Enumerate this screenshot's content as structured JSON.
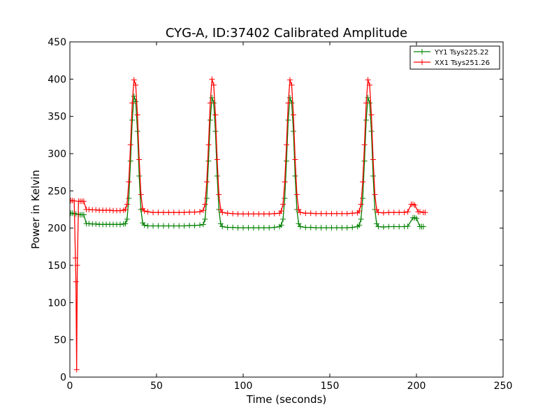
{
  "chart_data": {
    "type": "line",
    "title": "CYG-A, ID:37402 Calibrated Amplitude",
    "xlabel": "Time (seconds)",
    "ylabel": "Power in Kelvin",
    "xlim": [
      0,
      250
    ],
    "ylim": [
      0,
      450
    ],
    "xticks": [
      0,
      50,
      100,
      150,
      200,
      250
    ],
    "yticks": [
      0,
      50,
      100,
      150,
      200,
      250,
      300,
      350,
      400,
      450
    ],
    "grid": false,
    "legend": "top-right",
    "marker": "+",
    "series": [
      {
        "name": "YY1 Tsys225.22",
        "color": "#008000",
        "points": [
          [
            0.5,
            220
          ],
          [
            1.5,
            220
          ],
          [
            2.5,
            219.5
          ],
          [
            3.5,
            219
          ],
          [
            5,
            218.5
          ],
          [
            6,
            218
          ],
          [
            7,
            218
          ],
          [
            8,
            218
          ],
          [
            9.5,
            206
          ],
          [
            11,
            206
          ],
          [
            13,
            205.5
          ],
          [
            15,
            205.5
          ],
          [
            17,
            205
          ],
          [
            19,
            205
          ],
          [
            21,
            205
          ],
          [
            23,
            205
          ],
          [
            25,
            205
          ],
          [
            27,
            205
          ],
          [
            29,
            205
          ],
          [
            31,
            205.5
          ],
          [
            32,
            206
          ],
          [
            33,
            212
          ],
          [
            34,
            240
          ],
          [
            35,
            290
          ],
          [
            36,
            345
          ],
          [
            37,
            377
          ],
          [
            38,
            370
          ],
          [
            39,
            330
          ],
          [
            40,
            270
          ],
          [
            41,
            225
          ],
          [
            42,
            207
          ],
          [
            43,
            204
          ],
          [
            45,
            203
          ],
          [
            48,
            203
          ],
          [
            51,
            203
          ],
          [
            54,
            203
          ],
          [
            57,
            203
          ],
          [
            60,
            203
          ],
          [
            63,
            203
          ],
          [
            66,
            203
          ],
          [
            69,
            203.5
          ],
          [
            72,
            203.5
          ],
          [
            75,
            204
          ],
          [
            77,
            205
          ],
          [
            78,
            212
          ],
          [
            79,
            240
          ],
          [
            80,
            290
          ],
          [
            81,
            345
          ],
          [
            82,
            375
          ],
          [
            83,
            368
          ],
          [
            84,
            330
          ],
          [
            85,
            270
          ],
          [
            86,
            225
          ],
          [
            87,
            206
          ],
          [
            88,
            202
          ],
          [
            91,
            201
          ],
          [
            94,
            201
          ],
          [
            97,
            200.5
          ],
          [
            100,
            200.5
          ],
          [
            103,
            200.5
          ],
          [
            106,
            200.5
          ],
          [
            109,
            200.5
          ],
          [
            112,
            200.5
          ],
          [
            115,
            200.5
          ],
          [
            118,
            201
          ],
          [
            121,
            202
          ],
          [
            122,
            204
          ],
          [
            123,
            212
          ],
          [
            124,
            240
          ],
          [
            125,
            290
          ],
          [
            126,
            345
          ],
          [
            127,
            375
          ],
          [
            128,
            368
          ],
          [
            129,
            330
          ],
          [
            130,
            270
          ],
          [
            131,
            225
          ],
          [
            132,
            206
          ],
          [
            133,
            202
          ],
          [
            136,
            201
          ],
          [
            139,
            201
          ],
          [
            142,
            200.5
          ],
          [
            145,
            200.5
          ],
          [
            148,
            200.5
          ],
          [
            151,
            200.5
          ],
          [
            154,
            200.5
          ],
          [
            157,
            200.5
          ],
          [
            160,
            200.5
          ],
          [
            163,
            201
          ],
          [
            166,
            202
          ],
          [
            167,
            204
          ],
          [
            168,
            212
          ],
          [
            169,
            240
          ],
          [
            170,
            290
          ],
          [
            171,
            345
          ],
          [
            172,
            375
          ],
          [
            173,
            368
          ],
          [
            174,
            330
          ],
          [
            175,
            270
          ],
          [
            176,
            225
          ],
          [
            177,
            206
          ],
          [
            178,
            202
          ],
          [
            181,
            201.5
          ],
          [
            184,
            202
          ],
          [
            187,
            202
          ],
          [
            190,
            202
          ],
          [
            193,
            202
          ],
          [
            195,
            202.5
          ],
          [
            198,
            214
          ],
          [
            199,
            214
          ],
          [
            200,
            213
          ],
          [
            202,
            202
          ],
          [
            203,
            202
          ],
          [
            204,
            202
          ]
        ]
      },
      {
        "name": "XX1 Tsys251.26",
        "color": "#ff0000",
        "points": [
          [
            0.5,
            237
          ],
          [
            1.5,
            237
          ],
          [
            2.5,
            236.5
          ],
          [
            3.2,
            160
          ],
          [
            3.5,
            128
          ],
          [
            3.9,
            10
          ],
          [
            4.3,
            150
          ],
          [
            5,
            236
          ],
          [
            6,
            236
          ],
          [
            7,
            236
          ],
          [
            8,
            236
          ],
          [
            9.5,
            225
          ],
          [
            11,
            225
          ],
          [
            13,
            224.5
          ],
          [
            15,
            224.5
          ],
          [
            17,
            224
          ],
          [
            19,
            224
          ],
          [
            21,
            224
          ],
          [
            23,
            224
          ],
          [
            25,
            223.5
          ],
          [
            27,
            223.5
          ],
          [
            29,
            223.5
          ],
          [
            31,
            224
          ],
          [
            32,
            225
          ],
          [
            33,
            232
          ],
          [
            34,
            262
          ],
          [
            35,
            312
          ],
          [
            36,
            368
          ],
          [
            37,
            399
          ],
          [
            38,
            392
          ],
          [
            39,
            352
          ],
          [
            40,
            292
          ],
          [
            41,
            245
          ],
          [
            42,
            226
          ],
          [
            43,
            223
          ],
          [
            45,
            222
          ],
          [
            48,
            221
          ],
          [
            51,
            221
          ],
          [
            54,
            221
          ],
          [
            57,
            221
          ],
          [
            60,
            221
          ],
          [
            63,
            221
          ],
          [
            66,
            221
          ],
          [
            69,
            221.5
          ],
          [
            72,
            221.5
          ],
          [
            75,
            222
          ],
          [
            77,
            224
          ],
          [
            78,
            232
          ],
          [
            79,
            262
          ],
          [
            80,
            312
          ],
          [
            81,
            368
          ],
          [
            82,
            400
          ],
          [
            83,
            392
          ],
          [
            84,
            352
          ],
          [
            85,
            292
          ],
          [
            86,
            245
          ],
          [
            87,
            225
          ],
          [
            88,
            221
          ],
          [
            91,
            220
          ],
          [
            94,
            219.5
          ],
          [
            97,
            219
          ],
          [
            100,
            219
          ],
          [
            103,
            219
          ],
          [
            106,
            219
          ],
          [
            109,
            219
          ],
          [
            112,
            219
          ],
          [
            115,
            219
          ],
          [
            118,
            219.5
          ],
          [
            121,
            220
          ],
          [
            122,
            223
          ],
          [
            123,
            232
          ],
          [
            124,
            262
          ],
          [
            125,
            312
          ],
          [
            126,
            368
          ],
          [
            127,
            399
          ],
          [
            128,
            392
          ],
          [
            129,
            352
          ],
          [
            130,
            292
          ],
          [
            131,
            245
          ],
          [
            132,
            225
          ],
          [
            133,
            221
          ],
          [
            136,
            220
          ],
          [
            139,
            220
          ],
          [
            142,
            219.5
          ],
          [
            145,
            219.5
          ],
          [
            148,
            219.5
          ],
          [
            151,
            219.5
          ],
          [
            154,
            219.5
          ],
          [
            157,
            219.5
          ],
          [
            160,
            219.5
          ],
          [
            163,
            220
          ],
          [
            166,
            220.5
          ],
          [
            167,
            223
          ],
          [
            168,
            232
          ],
          [
            169,
            262
          ],
          [
            170,
            312
          ],
          [
            171,
            368
          ],
          [
            172,
            399
          ],
          [
            173,
            392
          ],
          [
            174,
            352
          ],
          [
            175,
            292
          ],
          [
            176,
            245
          ],
          [
            177,
            225
          ],
          [
            178,
            221
          ],
          [
            181,
            220.5
          ],
          [
            184,
            221
          ],
          [
            187,
            221
          ],
          [
            190,
            221
          ],
          [
            193,
            221
          ],
          [
            195,
            222
          ],
          [
            197,
            232
          ],
          [
            198,
            232
          ],
          [
            199,
            231
          ],
          [
            201,
            222
          ],
          [
            202,
            222
          ],
          [
            204,
            221
          ],
          [
            205,
            221
          ]
        ]
      }
    ]
  }
}
